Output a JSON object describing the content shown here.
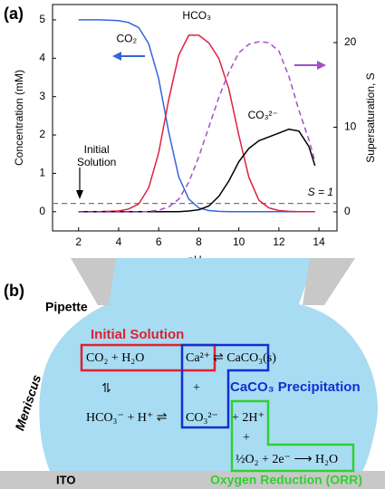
{
  "panels": [
    "(a)",
    "(b)"
  ],
  "chart_data": {
    "type": "line",
    "x_label": "pH",
    "y_label": "Concentration (mM)",
    "y2_label": "Supersaturation, S",
    "x": [
      2,
      3,
      4,
      4.5,
      5,
      5.5,
      6,
      6.5,
      7,
      7.5,
      8,
      8.5,
      9,
      9.5,
      10,
      10.5,
      11,
      11.5,
      12,
      12.5,
      13,
      13.5,
      13.8
    ],
    "series": [
      {
        "name": "CO₂",
        "color": "#3366dd",
        "values": [
          5,
          5,
          4.98,
          4.93,
          4.8,
          4.38,
          3.46,
          2.07,
          0.91,
          0.33,
          0.1,
          0.03,
          0.01,
          0,
          0,
          0,
          0,
          0,
          0,
          0,
          0,
          0,
          0
        ]
      },
      {
        "name": "HCO₃",
        "color": "#e02040",
        "values": [
          0,
          0,
          0.02,
          0.07,
          0.2,
          0.62,
          1.54,
          2.93,
          4.08,
          4.6,
          4.6,
          4.4,
          4.0,
          3.2,
          2.0,
          0.9,
          0.3,
          0.1,
          0.03,
          0.01,
          0,
          0,
          0
        ]
      },
      {
        "name": "CO₃²⁻",
        "color": "#000000",
        "values": [
          0,
          0,
          0,
          0,
          0,
          0,
          0,
          0,
          0,
          0.02,
          0.05,
          0.15,
          0.4,
          0.8,
          1.3,
          1.65,
          1.85,
          1.95,
          2.05,
          2.15,
          2.1,
          1.7,
          1.2
        ]
      },
      {
        "color": "#a050c8",
        "axis": "y2",
        "dashed": true,
        "values": [
          0,
          0,
          0,
          0,
          0,
          0.05,
          0.2,
          0.6,
          1.5,
          3.5,
          6.5,
          10,
          13.5,
          16.5,
          18.8,
          19.8,
          20.1,
          20,
          19,
          16,
          12,
          8.5,
          6
        ]
      }
    ],
    "xlim": [
      0.7,
      14.9
    ],
    "xticks": [
      2,
      4,
      6,
      8,
      10,
      12,
      14
    ],
    "ylim": [
      -0.5,
      5.4
    ],
    "yticks": [
      0,
      1,
      2,
      3,
      4,
      5
    ],
    "y2lim": [
      -2.25,
      24.5
    ],
    "y2ticks": [
      0,
      10,
      20
    ],
    "reference_line": {
      "value": 1,
      "label": "S = 1",
      "color": "#777777"
    },
    "initial_solution_label": [
      "Initial",
      "Solution"
    ]
  },
  "diagram": {
    "pipette": "Pipette",
    "meniscus": "Meniscus",
    "ito": "ITO",
    "initial_solution": "Initial Solution",
    "precipitation": "CaCO₃ Precipitation",
    "orr": "Oxygen Reduction (ORR)",
    "equations": {
      "co2_h2o": "CO₂ + H₂O",
      "ca": "Ca²⁺",
      "caco3": "⇌ CaCO₃(s)",
      "plus1": "+",
      "eq_vertical": "⇌",
      "hco3_h": "HCO₃⁻ + H⁺ ⇌",
      "co3": "CO₃²⁻",
      "plus_2h": "+ 2H⁺",
      "plus2": "+",
      "orr_eq": "½O₂ + 2e⁻ ⟶ H₂O"
    }
  }
}
